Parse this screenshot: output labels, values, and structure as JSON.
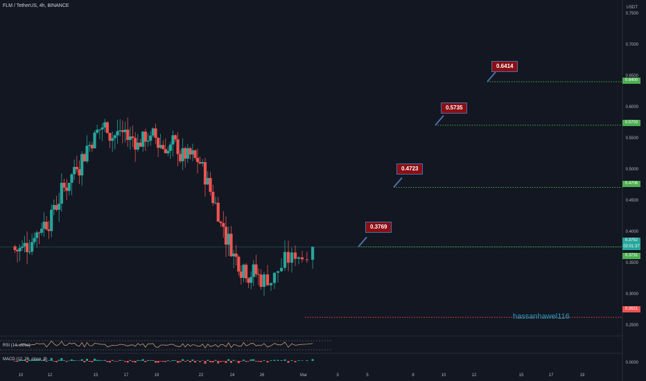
{
  "header": {
    "symbol_line": "FLM / TetherUS, 4h, BINANCE"
  },
  "axis": {
    "unit": "USDT",
    "price_ticks": [
      "0.7500",
      "0.7000",
      "0.6500",
      "0.6000",
      "0.5500",
      "0.5000",
      "0.4500",
      "0.4000",
      "0.3500",
      "0.3000",
      "0.2500"
    ],
    "date_ticks": [
      "10",
      "12",
      "15",
      "17",
      "19",
      "22",
      "24",
      "26",
      "Mar",
      "3",
      "5",
      "8",
      "10",
      "12",
      "15",
      "17",
      "19"
    ],
    "macd_tick": "0.0000"
  },
  "price_badges": [
    {
      "text": "0.6400",
      "color": "#4caf50"
    },
    {
      "text": "0.5703",
      "color": "#4caf50"
    },
    {
      "text": "0.4706",
      "color": "#4caf50"
    },
    {
      "text": "0.3752",
      "color": "#26a69a"
    },
    {
      "text": "02:01:37",
      "color": "#26a69a"
    },
    {
      "text": "0.3731",
      "color": "#4caf50"
    },
    {
      "text": "0.2621",
      "color": "#ef5350"
    }
  ],
  "targets": [
    {
      "label": "0.3769",
      "price": 0.3752
    },
    {
      "label": "0.4723",
      "price": 0.4706
    },
    {
      "label": "0.5735",
      "price": 0.5703
    },
    {
      "label": "0.6414",
      "price": 0.64
    }
  ],
  "stop": {
    "price": 0.2621
  },
  "current_price": 0.3752,
  "signature": "hassanhawel116",
  "indicators": {
    "rsi": "RSI (14, close)",
    "macd": "MACD (12, 26, close, 9)"
  },
  "colors": {
    "up": "#26a69a",
    "down": "#ef5350",
    "target_line": "#4caf50",
    "stop_line": "#ef5350",
    "callout_bg": "#8b0e14",
    "background": "#131722"
  },
  "chart_data": {
    "type": "candlestick",
    "ylim": [
      0.24,
      0.76
    ],
    "x_range_days": [
      9.6,
      20.0
    ],
    "anchor_days": [
      10,
      12,
      15,
      17,
      19,
      22,
      24,
      26,
      28
    ],
    "anchor_prices": [
      0.376,
      0.43,
      0.57,
      0.55,
      0.547,
      0.5,
      0.365,
      0.32,
      0.372
    ],
    "series": [
      {
        "values": []
      }
    ]
  }
}
